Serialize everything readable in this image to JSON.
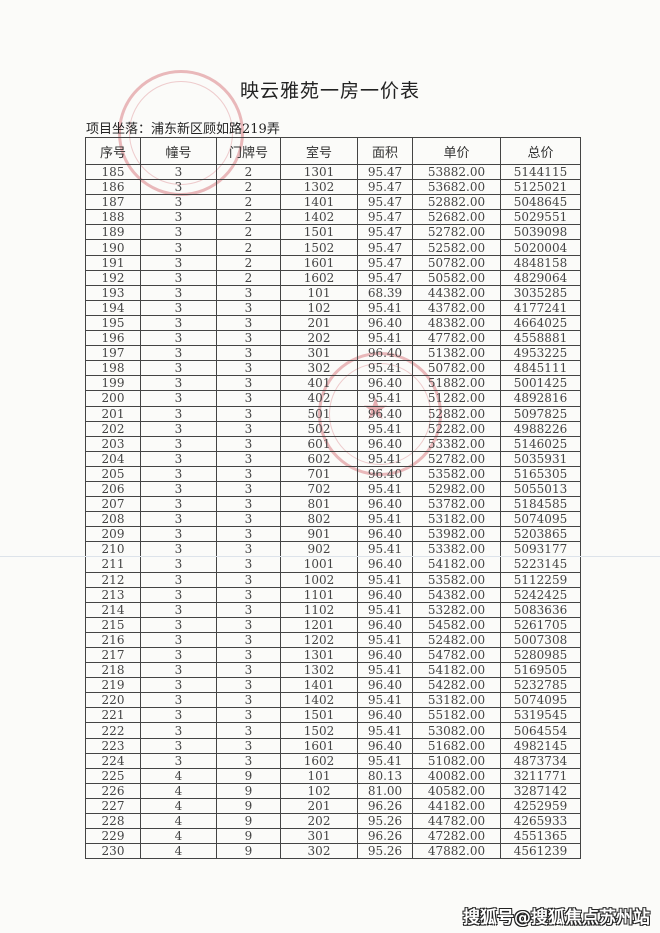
{
  "title": "映云雅苑一房一价表",
  "address_line": "项目坐落：浦东新区顾如路219弄",
  "columns": [
    "序号",
    "幢号",
    "门牌号",
    "室号",
    "面积",
    "单价",
    "总价"
  ],
  "rows": [
    [
      "185",
      "3",
      "2",
      "1301",
      "95.47",
      "53882.00",
      "5144115"
    ],
    [
      "186",
      "3",
      "2",
      "1302",
      "95.47",
      "53682.00",
      "5125021"
    ],
    [
      "187",
      "3",
      "2",
      "1401",
      "95.47",
      "52882.00",
      "5048645"
    ],
    [
      "188",
      "3",
      "2",
      "1402",
      "95.47",
      "52682.00",
      "5029551"
    ],
    [
      "189",
      "3",
      "2",
      "1501",
      "95.47",
      "52782.00",
      "5039098"
    ],
    [
      "190",
      "3",
      "2",
      "1502",
      "95.47",
      "52582.00",
      "5020004"
    ],
    [
      "191",
      "3",
      "2",
      "1601",
      "95.47",
      "50782.00",
      "4848158"
    ],
    [
      "192",
      "3",
      "2",
      "1602",
      "95.47",
      "50582.00",
      "4829064"
    ],
    [
      "193",
      "3",
      "3",
      "101",
      "68.39",
      "44382.00",
      "3035285"
    ],
    [
      "194",
      "3",
      "3",
      "102",
      "95.41",
      "43782.00",
      "4177241"
    ],
    [
      "195",
      "3",
      "3",
      "201",
      "96.40",
      "48382.00",
      "4664025"
    ],
    [
      "196",
      "3",
      "3",
      "202",
      "95.41",
      "47782.00",
      "4558881"
    ],
    [
      "197",
      "3",
      "3",
      "301",
      "96.40",
      "51382.00",
      "4953225"
    ],
    [
      "198",
      "3",
      "3",
      "302",
      "95.41",
      "50782.00",
      "4845111"
    ],
    [
      "199",
      "3",
      "3",
      "401",
      "96.40",
      "51882.00",
      "5001425"
    ],
    [
      "200",
      "3",
      "3",
      "402",
      "95.41",
      "51282.00",
      "4892816"
    ],
    [
      "201",
      "3",
      "3",
      "501",
      "96.40",
      "52882.00",
      "5097825"
    ],
    [
      "202",
      "3",
      "3",
      "502",
      "95.41",
      "52282.00",
      "4988226"
    ],
    [
      "203",
      "3",
      "3",
      "601",
      "96.40",
      "53382.00",
      "5146025"
    ],
    [
      "204",
      "3",
      "3",
      "602",
      "95.41",
      "52782.00",
      "5035931"
    ],
    [
      "205",
      "3",
      "3",
      "701",
      "96.40",
      "53582.00",
      "5165305"
    ],
    [
      "206",
      "3",
      "3",
      "702",
      "95.41",
      "52982.00",
      "5055013"
    ],
    [
      "207",
      "3",
      "3",
      "801",
      "96.40",
      "53782.00",
      "5184585"
    ],
    [
      "208",
      "3",
      "3",
      "802",
      "95.41",
      "53182.00",
      "5074095"
    ],
    [
      "209",
      "3",
      "3",
      "901",
      "96.40",
      "53982.00",
      "5203865"
    ],
    [
      "210",
      "3",
      "3",
      "902",
      "95.41",
      "53382.00",
      "5093177"
    ],
    [
      "211",
      "3",
      "3",
      "1001",
      "96.40",
      "54182.00",
      "5223145"
    ],
    [
      "212",
      "3",
      "3",
      "1002",
      "95.41",
      "53582.00",
      "5112259"
    ],
    [
      "213",
      "3",
      "3",
      "1101",
      "96.40",
      "54382.00",
      "5242425"
    ],
    [
      "214",
      "3",
      "3",
      "1102",
      "95.41",
      "53282.00",
      "5083636"
    ],
    [
      "215",
      "3",
      "3",
      "1201",
      "96.40",
      "54582.00",
      "5261705"
    ],
    [
      "216",
      "3",
      "3",
      "1202",
      "95.41",
      "52482.00",
      "5007308"
    ],
    [
      "217",
      "3",
      "3",
      "1301",
      "96.40",
      "54782.00",
      "5280985"
    ],
    [
      "218",
      "3",
      "3",
      "1302",
      "95.41",
      "54182.00",
      "5169505"
    ],
    [
      "219",
      "3",
      "3",
      "1401",
      "96.40",
      "54282.00",
      "5232785"
    ],
    [
      "220",
      "3",
      "3",
      "1402",
      "95.41",
      "53182.00",
      "5074095"
    ],
    [
      "221",
      "3",
      "3",
      "1501",
      "96.40",
      "55182.00",
      "5319545"
    ],
    [
      "222",
      "3",
      "3",
      "1502",
      "95.41",
      "53082.00",
      "5064554"
    ],
    [
      "223",
      "3",
      "3",
      "1601",
      "96.40",
      "51682.00",
      "4982145"
    ],
    [
      "224",
      "3",
      "3",
      "1602",
      "95.41",
      "51082.00",
      "4873734"
    ],
    [
      "225",
      "4",
      "9",
      "101",
      "80.13",
      "40082.00",
      "3211771"
    ],
    [
      "226",
      "4",
      "9",
      "102",
      "81.00",
      "40582.00",
      "3287142"
    ],
    [
      "227",
      "4",
      "9",
      "201",
      "96.26",
      "44182.00",
      "4252959"
    ],
    [
      "228",
      "4",
      "9",
      "202",
      "95.26",
      "44782.00",
      "4265933"
    ],
    [
      "229",
      "4",
      "9",
      "301",
      "96.26",
      "47282.00",
      "4551365"
    ],
    [
      "230",
      "4",
      "9",
      "302",
      "95.26",
      "47882.00",
      "4561239"
    ]
  ],
  "watermark": "搜狐号@搜狐焦点苏州站",
  "colors": {
    "stamp": "#c83c46",
    "grid": "#444444"
  }
}
